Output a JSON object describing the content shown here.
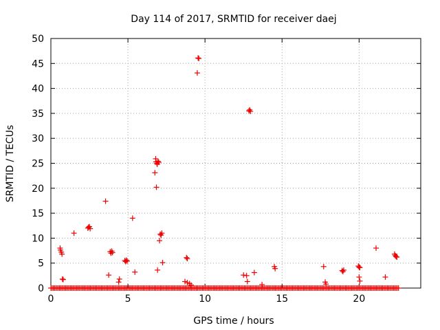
{
  "chart_data": {
    "type": "scatter",
    "title": "Day 114 of 2017, SRMTID for receiver daej",
    "xlabel": "GPS time / hours",
    "ylabel": "SRMTID / TECUs",
    "xlim": [
      0,
      24
    ],
    "ylim": [
      0,
      50
    ],
    "xticks": [
      0,
      5,
      10,
      15,
      20
    ],
    "yticks": [
      0,
      5,
      10,
      15,
      20,
      25,
      30,
      35,
      40,
      45,
      50
    ],
    "grid": true,
    "marker": "+",
    "color": "#ee0000",
    "series": [
      {
        "name": "SRMTID",
        "points": [
          [
            0.6,
            8.0
          ],
          [
            0.62,
            7.6
          ],
          [
            0.68,
            7.2
          ],
          [
            0.72,
            6.8
          ],
          [
            0.75,
            1.8
          ],
          [
            0.8,
            1.7
          ],
          [
            1.5,
            11.0
          ],
          [
            2.4,
            12.0
          ],
          [
            2.45,
            12.2
          ],
          [
            2.5,
            12.3
          ],
          [
            2.55,
            11.9
          ],
          [
            3.55,
            17.4
          ],
          [
            3.75,
            2.6
          ],
          [
            3.85,
            7.3
          ],
          [
            3.9,
            7.0
          ],
          [
            3.95,
            7.4
          ],
          [
            4.0,
            7.1
          ],
          [
            4.4,
            1.2
          ],
          [
            4.45,
            1.8
          ],
          [
            4.8,
            5.5
          ],
          [
            4.85,
            5.3
          ],
          [
            4.9,
            5.6
          ],
          [
            4.95,
            5.4
          ],
          [
            5.3,
            14.0
          ],
          [
            5.45,
            3.2
          ],
          [
            6.75,
            23.1
          ],
          [
            6.8,
            25.9
          ],
          [
            6.82,
            25.3
          ],
          [
            6.85,
            20.2
          ],
          [
            6.88,
            25.0
          ],
          [
            6.9,
            24.8
          ],
          [
            6.92,
            3.6
          ],
          [
            6.95,
            25.4
          ],
          [
            7.0,
            25.2
          ],
          [
            7.05,
            9.5
          ],
          [
            7.1,
            10.8
          ],
          [
            7.15,
            10.6
          ],
          [
            7.2,
            11.0
          ],
          [
            7.25,
            5.1
          ],
          [
            8.8,
            6.1
          ],
          [
            8.85,
            5.9
          ],
          [
            8.7,
            1.3
          ],
          [
            8.85,
            1.1
          ],
          [
            9.0,
            0.9
          ],
          [
            9.1,
            0.6
          ],
          [
            9.5,
            43.1
          ],
          [
            9.55,
            46.1
          ],
          [
            9.6,
            46.0
          ],
          [
            12.5,
            2.6
          ],
          [
            12.7,
            2.5
          ],
          [
            12.75,
            1.3
          ],
          [
            12.85,
            35.5
          ],
          [
            12.9,
            35.7
          ],
          [
            12.95,
            35.4
          ],
          [
            13.2,
            3.1
          ],
          [
            13.7,
            0.7
          ],
          [
            14.5,
            4.3
          ],
          [
            14.55,
            3.9
          ],
          [
            17.7,
            4.3
          ],
          [
            17.8,
            1.2
          ],
          [
            17.85,
            0.8
          ],
          [
            18.9,
            3.5
          ],
          [
            18.95,
            3.3
          ],
          [
            19.0,
            3.6
          ],
          [
            19.95,
            4.4
          ],
          [
            20.0,
            4.2
          ],
          [
            20.05,
            4.1
          ],
          [
            20.0,
            2.2
          ],
          [
            20.05,
            1.4
          ],
          [
            21.1,
            8.0
          ],
          [
            21.7,
            2.2
          ],
          [
            22.3,
            6.8
          ],
          [
            22.35,
            6.5
          ],
          [
            22.4,
            6.3
          ],
          [
            22.45,
            6.2
          ]
        ],
        "baseline_ranges": [
          [
            0.0,
            22.6,
            0.0
          ]
        ]
      }
    ]
  }
}
